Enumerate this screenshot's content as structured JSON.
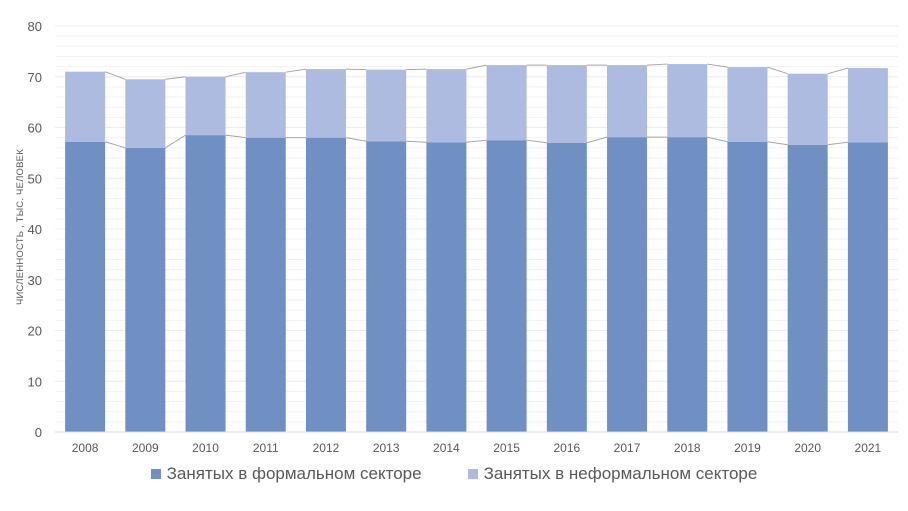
{
  "chart_data": {
    "type": "bar",
    "stacked": true,
    "title": "",
    "xlabel": "",
    "ylabel": "ЧИСЛЕННОСТЬ , ТЫС. ЧЕЛОВЕК",
    "ylim": [
      0,
      80
    ],
    "yticks": [
      0,
      10,
      20,
      30,
      40,
      50,
      60,
      70,
      80
    ],
    "grid": true,
    "legend_position": "bottom",
    "categories": [
      "2008",
      "2009",
      "2010",
      "2011",
      "2012",
      "2013",
      "2014",
      "2015",
      "2016",
      "2017",
      "2018",
      "2019",
      "2020",
      "2021"
    ],
    "series": [
      {
        "name": "Занятых в формальном секторе",
        "color": "#7090c4",
        "values": [
          57.2,
          56.0,
          58.5,
          58.0,
          58.0,
          57.3,
          57.1,
          57.5,
          57.0,
          58.1,
          58.1,
          57.2,
          56.6,
          57.1
        ]
      },
      {
        "name": "Занятых в неформальном секторе",
        "color": "#adbbe0",
        "values": [
          13.8,
          13.5,
          11.5,
          12.9,
          13.5,
          14.1,
          14.4,
          14.8,
          15.3,
          14.2,
          14.4,
          14.7,
          14.0,
          14.6
        ]
      }
    ],
    "totals": [
      71.0,
      69.5,
      70.0,
      70.9,
      71.5,
      71.4,
      71.5,
      72.3,
      72.3,
      72.3,
      72.5,
      71.9,
      70.6,
      71.7
    ],
    "annotations": "series-lines connecting bar tops (grey)"
  },
  "legend": {
    "items": [
      {
        "label": "Занятых в формальном секторе",
        "color": "#7090c4"
      },
      {
        "label": "Занятых в неформальном секторе",
        "color": "#adbbe0"
      }
    ]
  }
}
